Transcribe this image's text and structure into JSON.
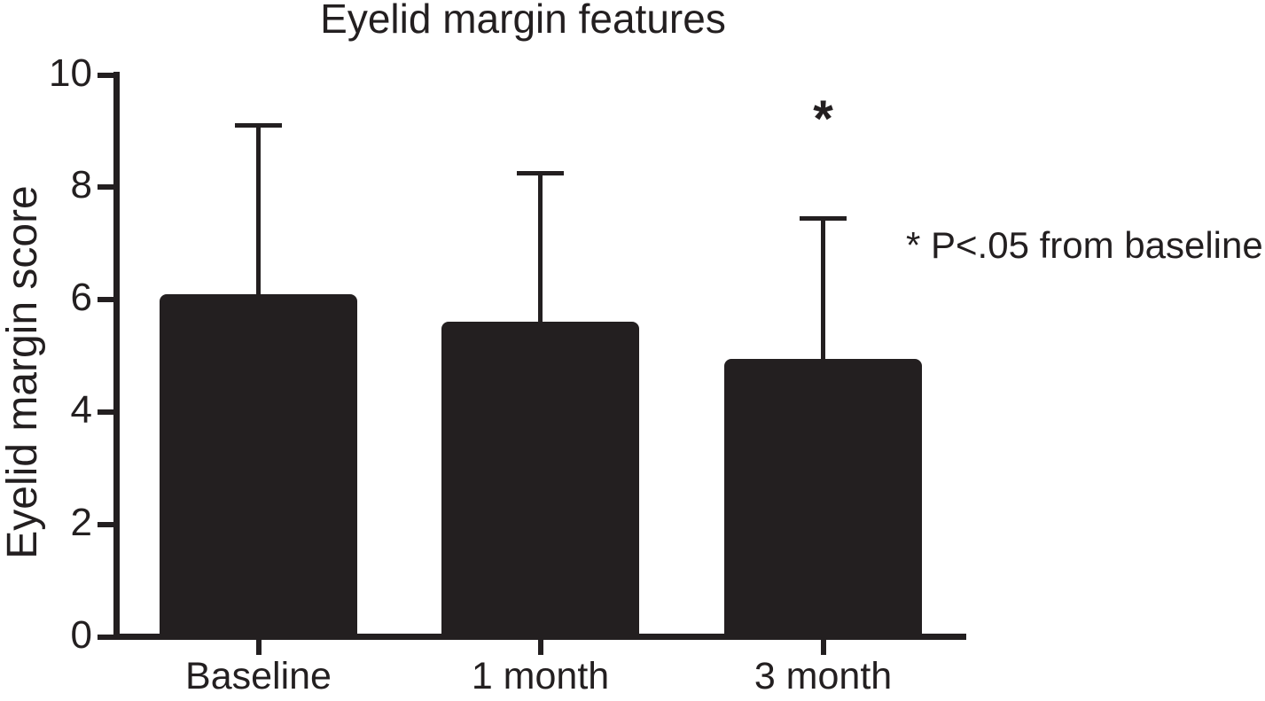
{
  "figure": {
    "background": "#ffffff",
    "ink_color": "#231f20"
  },
  "chart_data": {
    "type": "bar",
    "title": "Eyelid margin features",
    "ylabel": "Eyelid margin score",
    "categories": [
      "Baseline",
      "1 month",
      "3 month"
    ],
    "values": [
      6.1,
      5.6,
      4.95
    ],
    "error_plus": [
      3.0,
      2.65,
      2.5
    ],
    "error_tops": [
      9.1,
      8.25,
      7.45
    ],
    "significant": [
      false,
      false,
      true
    ],
    "significance_marker": "*",
    "annotation": "* P<.05 from baseline",
    "ylim": [
      0,
      10
    ],
    "yticks": [
      0,
      2,
      4,
      6,
      8,
      10
    ],
    "grid": false,
    "legend": null,
    "bar_color": "#231f20"
  }
}
